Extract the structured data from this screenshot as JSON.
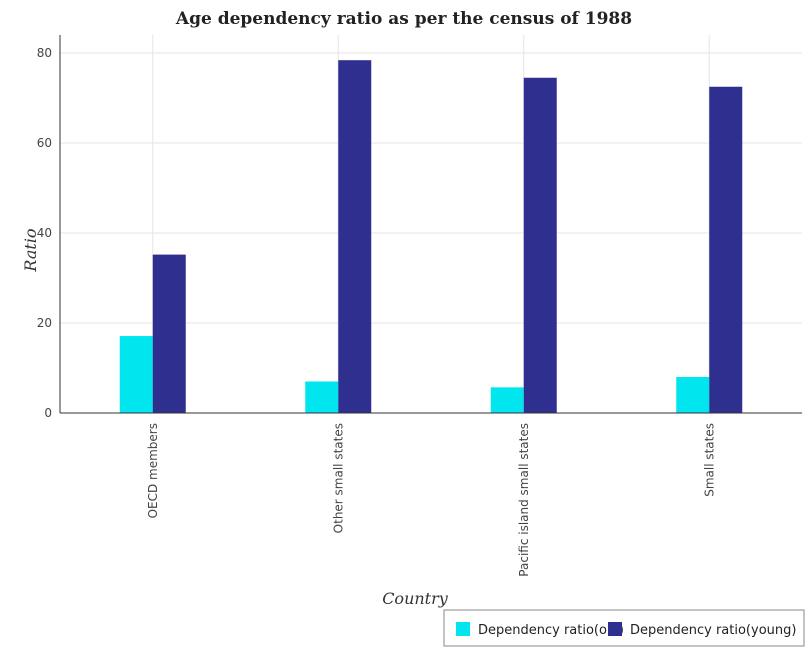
{
  "chart_data": {
    "type": "bar",
    "title": "Age dependency ratio as per the census of 1988",
    "xlabel": "Country",
    "ylabel": "Ratio",
    "categories": [
      "OECD members",
      "Other small states",
      "Pacific island small states",
      "Small states"
    ],
    "series": [
      {
        "name": "Dependency ratio(old)",
        "color": "#00e5ee",
        "values": [
          17.1,
          7.0,
          5.7,
          8.0
        ]
      },
      {
        "name": "Dependency ratio(young)",
        "color": "#2f2f8f",
        "values": [
          35.2,
          78.4,
          74.5,
          72.5
        ]
      }
    ],
    "ylim": [
      0,
      84
    ],
    "yticks": [
      0,
      20,
      40,
      60,
      80
    ],
    "grid": true,
    "legend_position": "bottom-right"
  }
}
